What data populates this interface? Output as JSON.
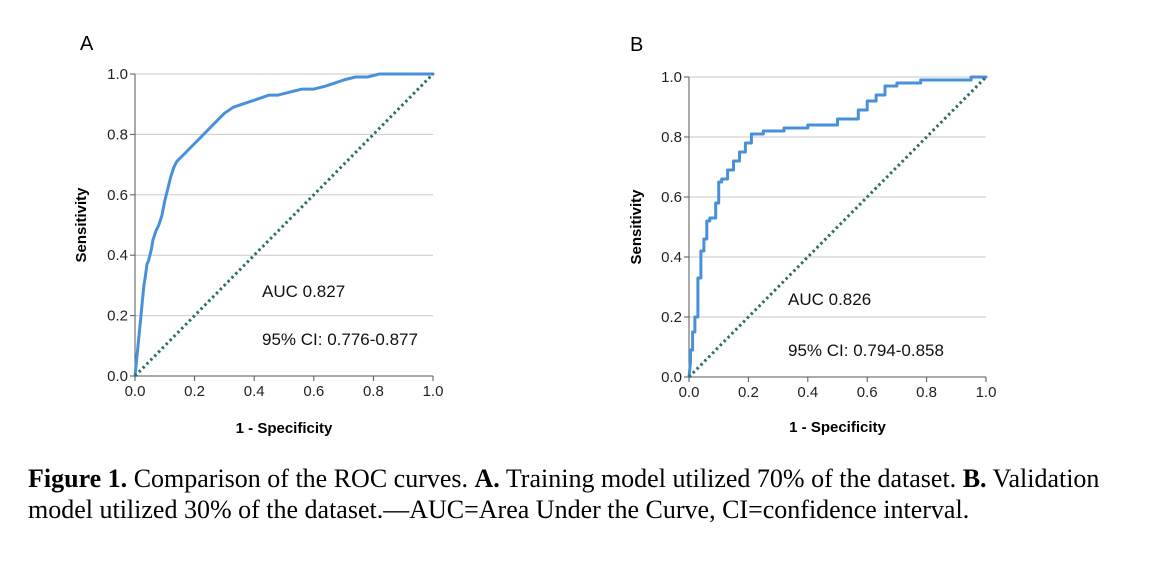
{
  "chart_data": [
    {
      "type": "line",
      "panel": "A",
      "xlabel": "1 - Specificity",
      "ylabel": "Sensitivity",
      "xlim": [
        0,
        1
      ],
      "ylim": [
        0,
        1
      ],
      "xticks": [
        "0.0",
        "0.2",
        "0.4",
        "0.6",
        "0.8",
        "1.0"
      ],
      "yticks": [
        "0.0",
        "0.2",
        "0.4",
        "0.6",
        "0.8",
        "1.0"
      ],
      "grid": "horizontal",
      "annotations": [
        "AUC 0.827",
        "95% CI: 0.776-0.877"
      ],
      "series": [
        {
          "style": "solid",
          "color": "#4a90d9",
          "x": [
            0,
            0.005,
            0.01,
            0.015,
            0.02,
            0.025,
            0.03,
            0.035,
            0.04,
            0.045,
            0.05,
            0.055,
            0.06,
            0.07,
            0.08,
            0.09,
            0.1,
            0.11,
            0.12,
            0.13,
            0.14,
            0.15,
            0.16,
            0.17,
            0.18,
            0.2,
            0.22,
            0.24,
            0.26,
            0.28,
            0.3,
            0.33,
            0.36,
            0.39,
            0.42,
            0.45,
            0.48,
            0.52,
            0.56,
            0.6,
            0.64,
            0.67,
            0.7,
            0.74,
            0.78,
            0.82,
            0.86,
            0.9,
            0.95,
            1.0
          ],
          "y": [
            0,
            0.05,
            0.1,
            0.15,
            0.2,
            0.25,
            0.3,
            0.33,
            0.37,
            0.38,
            0.4,
            0.42,
            0.45,
            0.48,
            0.5,
            0.53,
            0.58,
            0.62,
            0.66,
            0.69,
            0.71,
            0.72,
            0.73,
            0.74,
            0.75,
            0.77,
            0.79,
            0.81,
            0.83,
            0.85,
            0.87,
            0.89,
            0.9,
            0.91,
            0.92,
            0.93,
            0.93,
            0.94,
            0.95,
            0.95,
            0.96,
            0.97,
            0.98,
            0.99,
            0.99,
            1.0,
            1.0,
            1.0,
            1.0,
            1.0
          ]
        },
        {
          "style": "dotted",
          "color": "#2e6e6a",
          "x": [
            0,
            1
          ],
          "y": [
            0,
            1
          ]
        }
      ]
    },
    {
      "type": "line",
      "panel": "B",
      "xlabel": "1 - Specificity",
      "ylabel": "Sensitivity",
      "xlim": [
        0,
        1
      ],
      "ylim": [
        0,
        1
      ],
      "xticks": [
        "0.0",
        "0.2",
        "0.4",
        "0.6",
        "0.8",
        "1.0"
      ],
      "yticks": [
        "0.0",
        "0.2",
        "0.4",
        "0.6",
        "0.8",
        "1.0"
      ],
      "grid": "horizontal",
      "annotations": [
        "AUC 0.826",
        "95% CI: 0.794-0.858"
      ],
      "series": [
        {
          "style": "solid",
          "color": "#4a90d9",
          "x": [
            0,
            0.005,
            0.005,
            0.012,
            0.012,
            0.02,
            0.02,
            0.03,
            0.03,
            0.04,
            0.04,
            0.05,
            0.05,
            0.06,
            0.06,
            0.07,
            0.07,
            0.09,
            0.09,
            0.1,
            0.1,
            0.11,
            0.11,
            0.13,
            0.13,
            0.15,
            0.15,
            0.17,
            0.17,
            0.19,
            0.19,
            0.21,
            0.21,
            0.25,
            0.25,
            0.32,
            0.32,
            0.4,
            0.4,
            0.5,
            0.5,
            0.57,
            0.57,
            0.6,
            0.6,
            0.63,
            0.63,
            0.66,
            0.66,
            0.7,
            0.7,
            0.78,
            0.78,
            0.95,
            0.95,
            1.0
          ],
          "y": [
            0,
            0.05,
            0.09,
            0.09,
            0.15,
            0.15,
            0.2,
            0.2,
            0.33,
            0.33,
            0.42,
            0.42,
            0.46,
            0.46,
            0.52,
            0.52,
            0.53,
            0.53,
            0.58,
            0.58,
            0.65,
            0.65,
            0.66,
            0.66,
            0.69,
            0.69,
            0.72,
            0.72,
            0.75,
            0.75,
            0.78,
            0.78,
            0.81,
            0.81,
            0.82,
            0.82,
            0.83,
            0.83,
            0.84,
            0.84,
            0.86,
            0.86,
            0.89,
            0.89,
            0.92,
            0.92,
            0.94,
            0.94,
            0.97,
            0.97,
            0.98,
            0.98,
            0.99,
            0.99,
            1.0,
            1.0
          ]
        },
        {
          "style": "dotted",
          "color": "#2e6e6a",
          "x": [
            0,
            1
          ],
          "y": [
            0,
            1
          ]
        }
      ]
    }
  ],
  "caption": {
    "fig_label": "Figure 1.",
    "text_1": " Comparison of the ROC curves. ",
    "a_label": "A.",
    "text_2": " Training model utilized 70% of the dataset. ",
    "b_label": "B.",
    "text_3": " Validation model utilized 30% of the dataset.—AUC=Area Under the Curve, CI=confidence interval."
  }
}
